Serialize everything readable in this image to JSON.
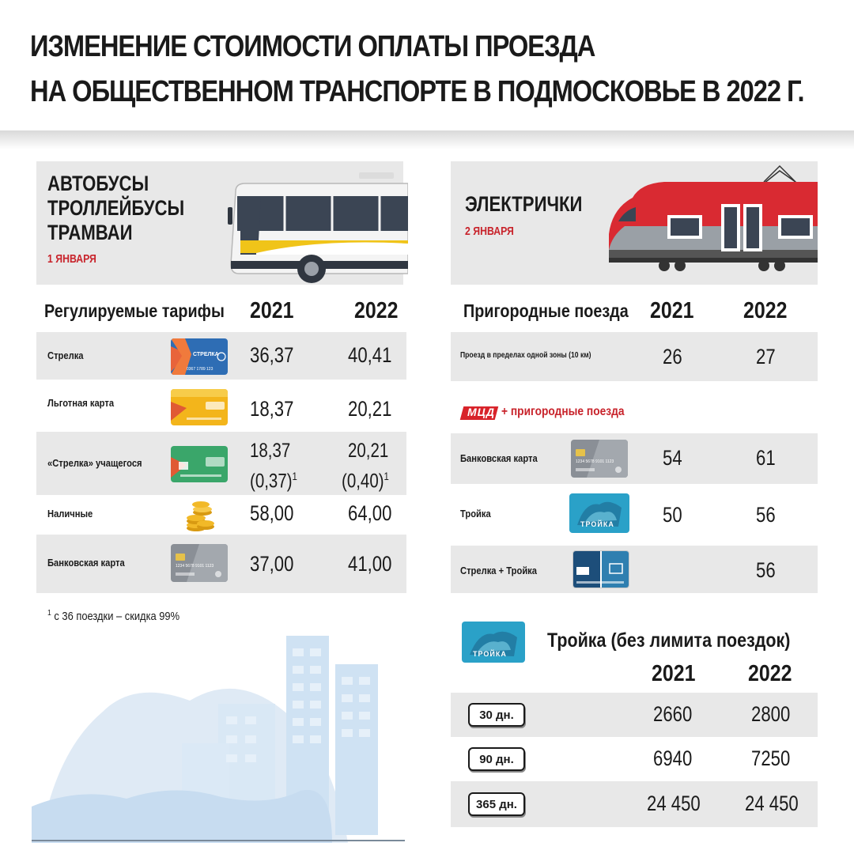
{
  "header": {
    "title_line1": "ИЗМЕНЕНИЕ СТОИМОСТИ ОПЛАТЫ ПРОЕЗДА",
    "title_line2": "НА ОБЩЕСТВЕННОМ ТРАНСПОРТЕ В ПОДМОСКОВЬЕ В 2022 Г."
  },
  "bus": {
    "line1": "АВТОБУСЫ",
    "line2": "ТРОЛЛЕЙБУСЫ",
    "line3": "ТРАМВАИ",
    "date": "1 ЯНВАРЯ",
    "col_header": "Регулируемые тарифы",
    "year1": "2021",
    "year2": "2022",
    "rows": [
      {
        "label": "Стрелка",
        "v2021": "36,37",
        "v2022": "40,41",
        "icon": "strelka-card"
      },
      {
        "label": "Льготная карта",
        "v2021": "18,37",
        "v2022": "20,21",
        "icon": "lgotnaya-card"
      },
      {
        "label": "«Стрелка» учащегося",
        "v2021": "18,37",
        "v2021b": "(0,37)",
        "v2022": "20,21",
        "v2022b": "(0,40)",
        "sup": "1",
        "icon": "student-card"
      },
      {
        "label": "Наличные",
        "v2021": "58,00",
        "v2022": "64,00",
        "icon": "coins"
      },
      {
        "label": "Банковская карта",
        "v2021": "37,00",
        "v2022": "41,00",
        "icon": "bank-card"
      }
    ],
    "footnote_mark": "1",
    "footnote": "с 36 поездки – скидка 99%",
    "strelka_card_text": "СТРЕЛКА",
    "strelka_card_number": "0367 1789 123",
    "bank_card_number": "1234 5678 9101 1123"
  },
  "train": {
    "title": "ЭЛЕКТРИЧКИ",
    "date": "2 ЯНВАРЯ",
    "col_header": "Пригородные поезда",
    "year1": "2021",
    "year2": "2022",
    "zone_row": {
      "label": "Проезд в пределах одной зоны (10 км)",
      "v2021": "26",
      "v2022": "27"
    },
    "mcd_badge": "МЦД",
    "mcd_text": "+ пригородные поезда",
    "mcd_rows": [
      {
        "label": "Банковская карта",
        "v2021": "54",
        "v2022": "61",
        "icon": "bank-card"
      },
      {
        "label": "Тройка",
        "v2021": "50",
        "v2022": "56",
        "icon": "troika-card"
      },
      {
        "label": "Стрелка + Тройка",
        "v2021": "",
        "v2022": "56",
        "icon": "strelka-troika-card"
      }
    ],
    "troika_card_text": "ТРОЙКА",
    "troika_title": "Тройка (без лимита поездок)",
    "troika_year1": "2021",
    "troika_year2": "2022",
    "troika_rows": [
      {
        "period": "30 дн.",
        "v2021": "2660",
        "v2022": "2800"
      },
      {
        "period": "90 дн.",
        "v2021": "6940",
        "v2022": "7250"
      },
      {
        "period": "365 дн.",
        "v2021": "24 450",
        "v2022": "24 450"
      }
    ]
  },
  "colors": {
    "accent_red": "#c8232b",
    "panel_gray": "#e8e8e8",
    "city_blue": "#d6e8f6"
  }
}
